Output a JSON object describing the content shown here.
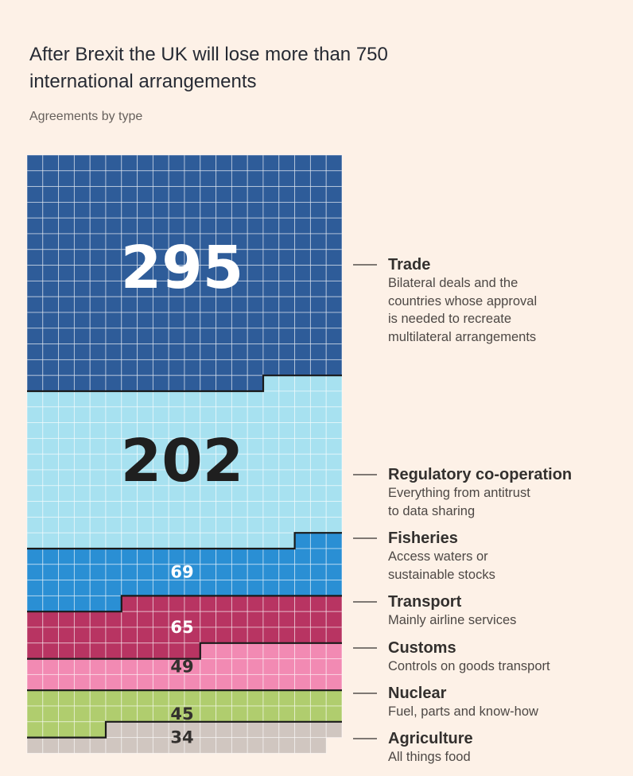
{
  "title": "After Brexit the UK will lose more than 750 international arrangements",
  "subtitle": "Agreements by type",
  "chart_data": {
    "type": "waffle",
    "units_per_row": 20,
    "series": [
      {
        "name": "Trade",
        "value": 295,
        "description": "Bilateral deals and the\ncountries whose approval\n is needed to recreate\nmultilateral arrangements",
        "color": "#2e5c99"
      },
      {
        "name": "Regulatory co-operation",
        "value": 202,
        "description": "Everything from antitrust\nto data sharing",
        "color": "#a7e1f0"
      },
      {
        "name": "Fisheries",
        "value": 69,
        "description": "Access waters or\nsustainable stocks",
        "color": "#2a8fd4"
      },
      {
        "name": "Transport",
        "value": 65,
        "description": "Mainly airline services",
        "color": "#b83462"
      },
      {
        "name": "Customs",
        "value": 49,
        "description": "Controls on goods transport",
        "color": "#f28ab3"
      },
      {
        "name": "Nuclear",
        "value": 45,
        "description": "Fuel, parts and know-how",
        "color": "#b0cd6e"
      },
      {
        "name": "Agriculture",
        "value": 34,
        "description": "All things food",
        "color": "#d0c6c0"
      }
    ]
  }
}
